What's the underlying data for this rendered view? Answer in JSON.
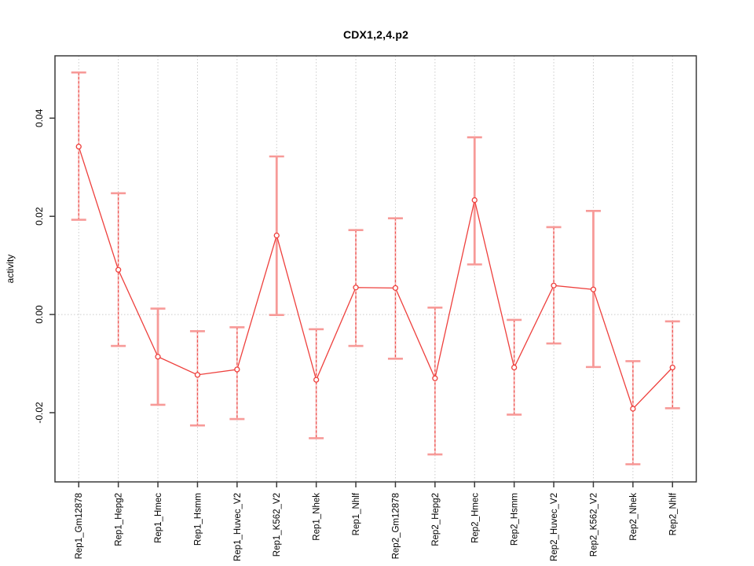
{
  "title": "CDX1,2,4.p2",
  "y_axis_label": "activity",
  "chart_data": {
    "type": "line",
    "title": "CDX1,2,4.p2",
    "xlabel": "",
    "ylabel": "activity",
    "legend_position": "none",
    "categories": [
      "Rep1_Gm12878",
      "Rep1_Hepg2",
      "Rep1_Hmec",
      "Rep1_Hsmm",
      "Rep1_Huvec_V2",
      "Rep1_K562_V2",
      "Rep1_Nhek",
      "Rep1_Nhlf",
      "Rep2_Gm12878",
      "Rep2_Hepg2",
      "Rep2_Hmec",
      "Rep2_Hsmm",
      "Rep2_Huvec_V2",
      "Rep2_K562_V2",
      "Rep2_Nhek",
      "Rep2_Nhlf"
    ],
    "series": [
      {
        "name": "activity",
        "values": [
          0.0342,
          0.0091,
          -0.0086,
          -0.0123,
          -0.0112,
          0.0161,
          -0.0133,
          0.0055,
          0.0054,
          -0.013,
          0.0233,
          -0.0108,
          0.0059,
          0.0051,
          -0.0192,
          -0.0108
        ],
        "error_lower": [
          0.0193,
          -0.0064,
          -0.0184,
          -0.0226,
          -0.0213,
          -0.0001,
          -0.0252,
          -0.0064,
          -0.009,
          -0.0285,
          0.0102,
          -0.0204,
          -0.0059,
          -0.0107,
          -0.0305,
          -0.0191
        ],
        "error_upper": [
          0.0493,
          0.0247,
          0.0012,
          -0.0034,
          -0.0026,
          0.0322,
          -0.003,
          0.0172,
          0.0196,
          0.0014,
          0.0361,
          -0.0011,
          0.0178,
          0.0211,
          -0.0095,
          -0.0014
        ]
      }
    ],
    "errorbar_styles": [
      "dashed",
      "dashed",
      "solid",
      "dashed",
      "dashed",
      "solid",
      "dashed",
      "dashed",
      "dashed",
      "dashed",
      "solid",
      "dashed",
      "dashed",
      "solid",
      "dashed",
      "dashed"
    ],
    "yticks": [
      -0.02,
      0,
      0.02,
      0.04
    ],
    "ytick_labels": [
      "-0.02",
      "0.00",
      "0.02",
      "0.04"
    ],
    "ylim": [
      -0.0341,
      0.0527
    ],
    "xlim_units": [
      0.4,
      16.6
    ],
    "grid": {
      "vertical_at_categories": true,
      "horizontal_at": [
        0
      ],
      "style": "dotted"
    },
    "marker": "open-circle",
    "colors": {
      "line": "#ee403d",
      "marker": "#ee403d",
      "errorbar_cap": "#f79a98",
      "errorbar_shaft_solid": "#f79a98",
      "errorbar_shaft_dash": "#ee4f4c",
      "grid": "#cbcbcb",
      "box": "#3a3a3a",
      "tick": "#3a3a3a",
      "text": "#000000",
      "background": "#ffffff"
    }
  }
}
